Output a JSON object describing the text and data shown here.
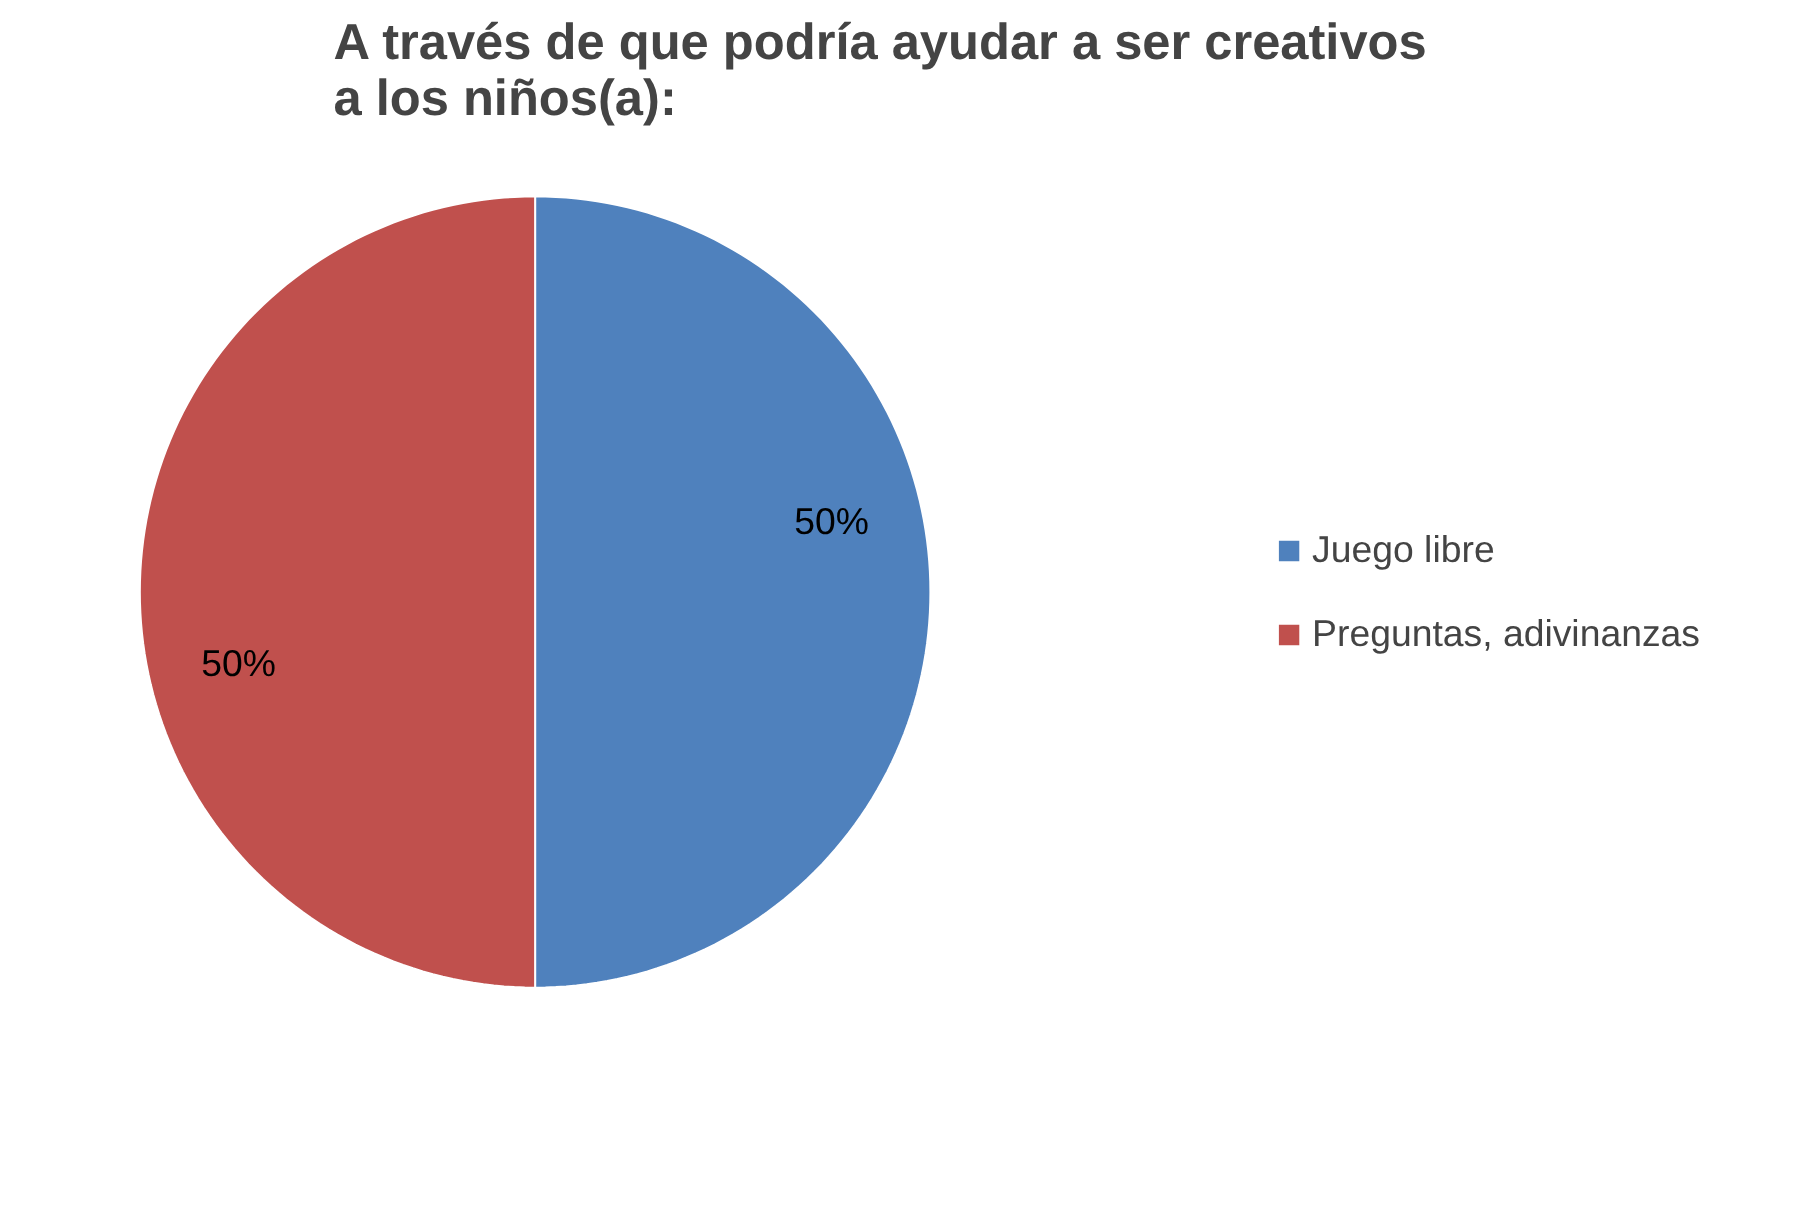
{
  "chart_data": {
    "type": "pie",
    "title": "A través de que podría ayudar a ser creativos a los niños(a):",
    "categories": [
      "Juego libre",
      "Preguntas, adivinanzas"
    ],
    "values": [
      50,
      50
    ],
    "colors": [
      "#4f81bd",
      "#c0504d"
    ],
    "value_labels": [
      "50%",
      "50%"
    ],
    "legend": "right"
  }
}
